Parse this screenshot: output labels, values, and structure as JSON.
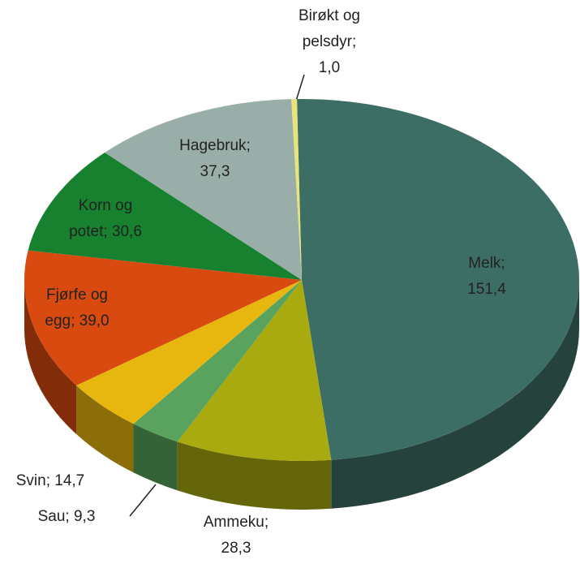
{
  "chart_data": {
    "type": "pie",
    "labels": [
      [
        "Melk;",
        "151,4"
      ],
      [
        "Ammeku;",
        "28,3"
      ],
      [
        "Sau;  9,3"
      ],
      [
        "Svin;  14,7"
      ],
      [
        "Fjørfe og",
        "egg;  39,0"
      ],
      [
        "Korn og",
        "potet;  30,6"
      ],
      [
        "Hagebruk;",
        "37,3"
      ],
      [
        "Birøkt og",
        "pelsdyr;",
        "1,0"
      ]
    ],
    "values": [
      151.4,
      28.3,
      9.3,
      14.7,
      39.0,
      30.6,
      37.3,
      1.0
    ],
    "colors": [
      "#3d6e65",
      "#a8aa10",
      "#5aa35e",
      "#e8b70f",
      "#d84a10",
      "#17812f",
      "#9aaea9",
      "#e8e47a"
    ]
  }
}
